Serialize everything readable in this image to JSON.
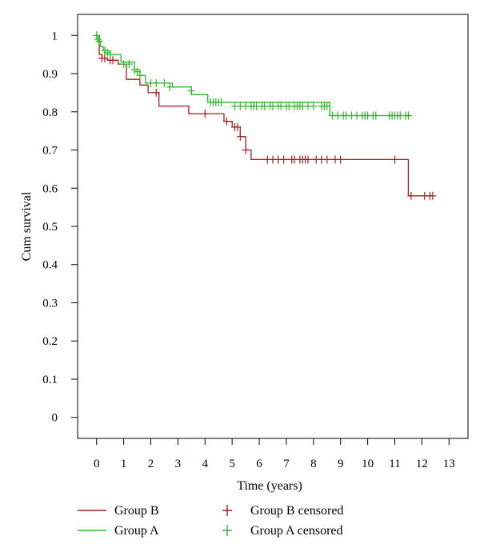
{
  "chart_data": {
    "type": "line",
    "subtype": "kaplan-meier",
    "title": "",
    "xlabel": "Time (years)",
    "ylabel": "Cum survival",
    "xlim": [
      -0.7,
      13.7
    ],
    "ylim": [
      -0.055,
      1.055
    ],
    "x_ticks": [
      0,
      1,
      2,
      3,
      4,
      5,
      6,
      7,
      8,
      9,
      10,
      11,
      12,
      13
    ],
    "y_ticks": [
      0,
      0.1,
      0.2,
      0.3,
      0.4,
      0.5,
      0.6,
      0.7,
      0.8,
      0.9,
      1
    ],
    "x_tick_labels": [
      "0",
      "1",
      "2",
      "3",
      "4",
      "5",
      "6",
      "7",
      "8",
      "9",
      "10",
      "11",
      "12",
      "13"
    ],
    "y_tick_labels": [
      "0",
      "0.1",
      "0.2",
      "0.3",
      "0.4",
      "0.5",
      "0.6",
      "0.7",
      "0.8",
      "0.9",
      "1"
    ],
    "grid": false,
    "legend_position": "bottom",
    "series": [
      {
        "name": "Group B",
        "color": "#a31f1f",
        "x": [
          0,
          0.1,
          0.2,
          0.4,
          0.8,
          1.1,
          1.6,
          1.9,
          2.3,
          3.4,
          4.7,
          5.0,
          5.3,
          5.5,
          5.7,
          11.5,
          12.4
        ],
        "y": [
          1,
          0.95,
          0.94,
          0.935,
          0.925,
          0.885,
          0.87,
          0.85,
          0.815,
          0.795,
          0.775,
          0.76,
          0.735,
          0.7,
          0.675,
          0.58,
          0.58
        ],
        "censored_x": [
          0.2,
          0.3,
          0.5,
          0.6,
          2.2,
          4.0,
          4.8,
          5.1,
          5.2,
          5.3,
          5.5,
          6.3,
          6.5,
          6.7,
          6.9,
          7.2,
          7.3,
          7.5,
          7.6,
          7.7,
          7.8,
          8.1,
          8.3,
          8.5,
          8.8,
          9.0,
          11.0,
          11.6,
          12.1,
          12.3,
          12.4
        ],
        "censored_y": [
          0.94,
          0.94,
          0.935,
          0.935,
          0.85,
          0.795,
          0.775,
          0.76,
          0.76,
          0.735,
          0.7,
          0.675,
          0.675,
          0.675,
          0.675,
          0.675,
          0.675,
          0.675,
          0.675,
          0.675,
          0.675,
          0.675,
          0.675,
          0.675,
          0.675,
          0.675,
          0.675,
          0.58,
          0.58,
          0.58,
          0.58
        ]
      },
      {
        "name": "Group A",
        "color": "#2db82d",
        "x": [
          0,
          0.1,
          0.15,
          0.25,
          0.5,
          0.9,
          1.4,
          1.6,
          1.8,
          2.8,
          3.5,
          4.1,
          8.6,
          11.6
        ],
        "y": [
          1,
          0.985,
          0.97,
          0.96,
          0.95,
          0.93,
          0.91,
          0.895,
          0.875,
          0.865,
          0.845,
          0.825,
          0.79,
          0.79
        ],
        "censored_x": [
          0.0,
          0.05,
          0.1,
          0.3,
          0.4,
          0.5,
          1.0,
          1.2,
          1.4,
          1.5,
          1.6,
          2.0,
          2.2,
          2.5,
          2.7,
          3.5,
          4.2,
          4.3,
          4.4,
          4.5,
          4.6,
          5.1,
          5.3,
          5.5,
          5.7,
          5.8,
          5.9,
          6.1,
          6.2,
          6.4,
          6.5,
          6.7,
          6.8,
          7.0,
          7.1,
          7.3,
          7.4,
          7.5,
          7.6,
          7.8,
          8.0,
          8.3,
          8.4,
          8.5,
          8.7,
          8.9,
          9.1,
          9.2,
          9.4,
          9.6,
          9.8,
          9.9,
          10.0,
          10.2,
          10.3,
          10.8,
          10.9,
          11.0,
          11.1,
          11.2,
          11.4,
          11.5
        ],
        "censored_y": [
          1.0,
          0.99,
          0.985,
          0.96,
          0.955,
          0.95,
          0.925,
          0.925,
          0.91,
          0.905,
          0.895,
          0.875,
          0.875,
          0.875,
          0.865,
          0.855,
          0.825,
          0.825,
          0.825,
          0.825,
          0.825,
          0.815,
          0.815,
          0.815,
          0.815,
          0.815,
          0.815,
          0.815,
          0.815,
          0.815,
          0.815,
          0.815,
          0.815,
          0.815,
          0.815,
          0.815,
          0.815,
          0.815,
          0.815,
          0.815,
          0.815,
          0.815,
          0.815,
          0.815,
          0.79,
          0.79,
          0.79,
          0.79,
          0.79,
          0.79,
          0.79,
          0.79,
          0.79,
          0.79,
          0.79,
          0.79,
          0.79,
          0.79,
          0.79,
          0.79,
          0.79,
          0.79
        ]
      }
    ],
    "legend": [
      {
        "label": "Group B",
        "kind": "line",
        "color": "#a31f1f"
      },
      {
        "label": "Group B censored",
        "kind": "plus",
        "color": "#a31f1f"
      },
      {
        "label": "Group A",
        "kind": "line",
        "color": "#2db82d"
      },
      {
        "label": "Group A censored",
        "kind": "plus",
        "color": "#2db82d"
      }
    ]
  }
}
